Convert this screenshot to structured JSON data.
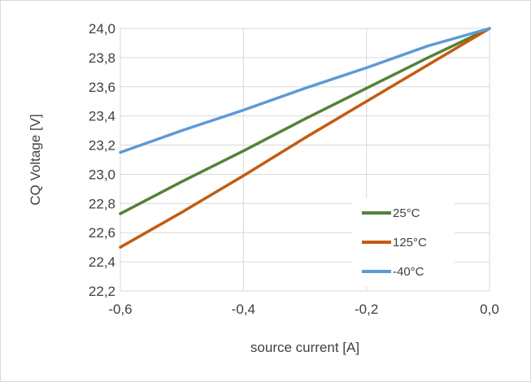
{
  "chart_data": {
    "type": "line",
    "title": "",
    "xlabel": "source current [A]",
    "ylabel": "CQ Voltage [V]",
    "xlim": [
      -0.6,
      0.0
    ],
    "ylim": [
      22.2,
      24.0
    ],
    "x_ticks": [
      -0.6,
      -0.4,
      -0.2,
      0.0
    ],
    "x_tick_labels": [
      "-0,6",
      "-0,4",
      "-0,2",
      "0,0"
    ],
    "y_ticks": [
      22.2,
      22.4,
      22.6,
      22.8,
      23.0,
      23.2,
      23.4,
      23.6,
      23.8,
      24.0
    ],
    "y_tick_labels": [
      "22,2",
      "22,4",
      "22,6",
      "22,8",
      "23,0",
      "23,2",
      "23,4",
      "23,6",
      "23,8",
      "24,0"
    ],
    "grid": true,
    "legend_position": "bottom-right",
    "series": [
      {
        "name": "25°C",
        "color": "#548235",
        "x": [
          -0.6,
          -0.5,
          -0.4,
          -0.3,
          -0.2,
          -0.1,
          0.0
        ],
        "y": [
          22.73,
          22.95,
          23.16,
          23.38,
          23.59,
          23.8,
          24.0
        ]
      },
      {
        "name": "125°C",
        "color": "#c55a11",
        "x": [
          -0.6,
          -0.5,
          -0.4,
          -0.3,
          -0.2,
          -0.1,
          0.0
        ],
        "y": [
          22.5,
          22.74,
          22.99,
          23.25,
          23.5,
          23.75,
          24.0
        ]
      },
      {
        "name": "-40°C",
        "color": "#5b9bd5",
        "x": [
          -0.6,
          -0.5,
          -0.4,
          -0.3,
          -0.2,
          -0.1,
          0.0
        ],
        "y": [
          23.15,
          23.3,
          23.44,
          23.59,
          23.73,
          23.88,
          24.0
        ]
      }
    ]
  }
}
